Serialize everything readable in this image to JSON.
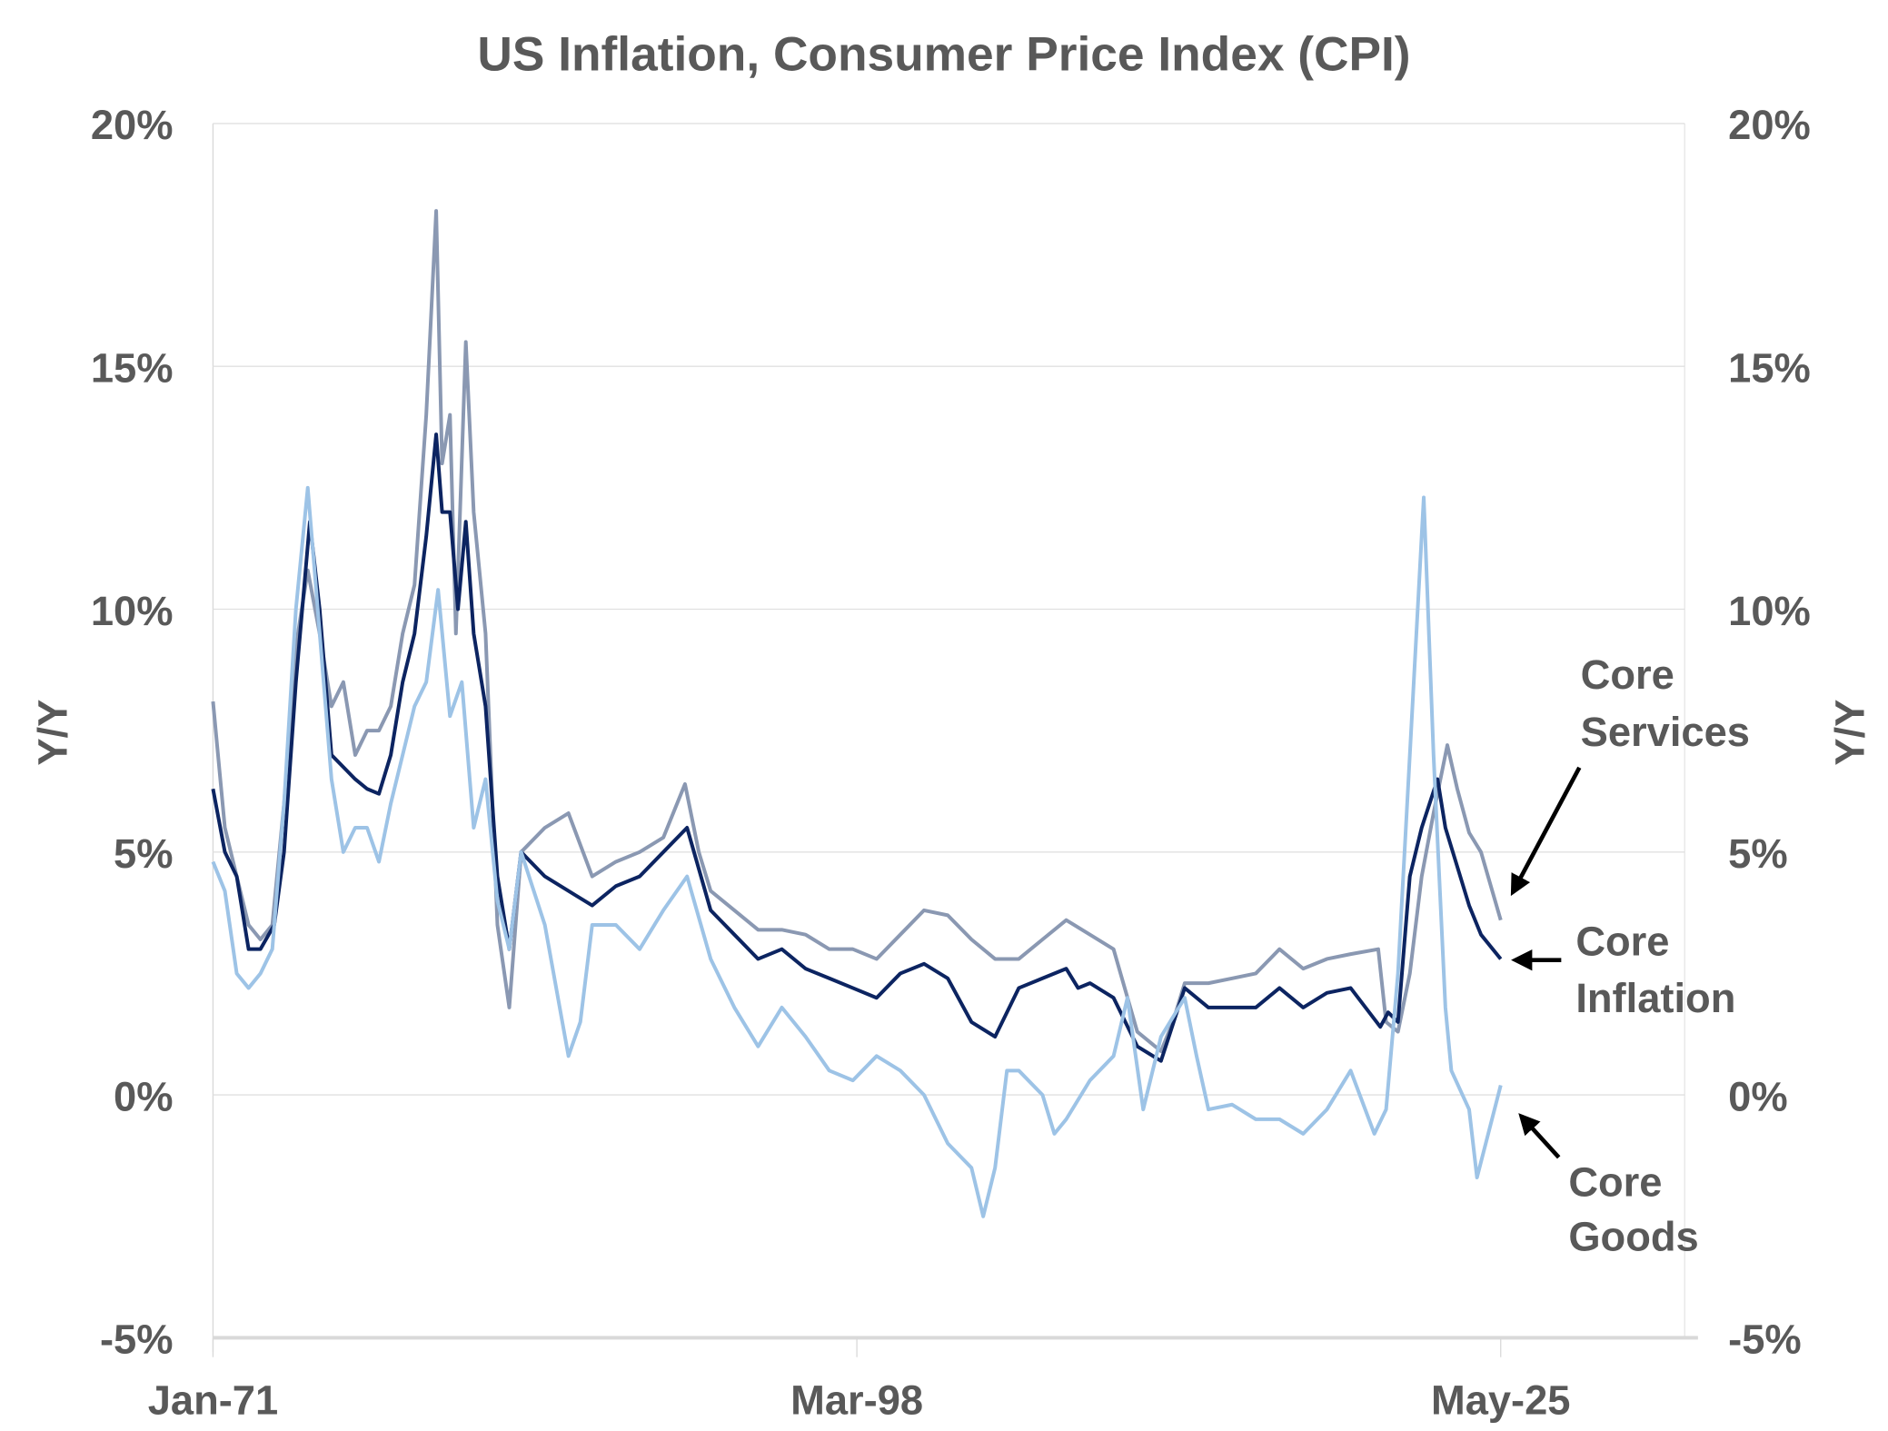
{
  "chart_data": {
    "type": "line",
    "title": "US Inflation, Consumer Price Index (CPI)",
    "ylabel_left": "Y/Y",
    "ylabel_right": "Y/Y",
    "ylim": [
      -5,
      20
    ],
    "yticks": [
      -5,
      0,
      5,
      10,
      15,
      20
    ],
    "ytick_labels": [
      "-5%",
      "0%",
      "5%",
      "10%",
      "15%",
      "20%"
    ],
    "xticks": [
      "1971-01",
      "1998-03",
      "2025-05"
    ],
    "xtick_labels": [
      "Jan-71",
      "Mar-98",
      "May-25"
    ],
    "xlim": [
      "1971-01",
      "2033-01"
    ],
    "grid": "horizontal",
    "legend": "inline annotations at right with arrows",
    "series": [
      {
        "name": "Core Services",
        "color": "#8a98b2",
        "label_lines": [
          "Core",
          "Services"
        ],
        "points": [
          [
            "1971-01",
            8.1
          ],
          [
            "1971-07",
            5.5
          ],
          [
            "1972-01",
            4.5
          ],
          [
            "1972-07",
            3.5
          ],
          [
            "1973-01",
            3.2
          ],
          [
            "1973-07",
            3.5
          ],
          [
            "1974-01",
            6
          ],
          [
            "1974-08",
            9.5
          ],
          [
            "1975-01",
            10.8
          ],
          [
            "1975-07",
            9.5
          ],
          [
            "1976-01",
            8
          ],
          [
            "1976-07",
            8.5
          ],
          [
            "1977-01",
            7
          ],
          [
            "1977-07",
            7.5
          ],
          [
            "1978-01",
            7.5
          ],
          [
            "1978-07",
            8
          ],
          [
            "1979-01",
            9.5
          ],
          [
            "1979-07",
            10.5
          ],
          [
            "1980-01",
            14
          ],
          [
            "1980-06",
            18.2
          ],
          [
            "1980-09",
            13
          ],
          [
            "1981-01",
            14
          ],
          [
            "1981-04",
            9.5
          ],
          [
            "1981-09",
            15.5
          ],
          [
            "1982-01",
            12
          ],
          [
            "1982-07",
            9.5
          ],
          [
            "1983-01",
            3.5
          ],
          [
            "1983-07",
            1.8
          ],
          [
            "1984-01",
            5
          ],
          [
            "1985-01",
            5.5
          ],
          [
            "1986-01",
            5.8
          ],
          [
            "1987-01",
            4.5
          ],
          [
            "1988-01",
            4.8
          ],
          [
            "1989-01",
            5
          ],
          [
            "1990-01",
            5.3
          ],
          [
            "1990-12",
            6.4
          ],
          [
            "1991-07",
            5
          ],
          [
            "1992-01",
            4.2
          ],
          [
            "1993-01",
            3.8
          ],
          [
            "1994-01",
            3.4
          ],
          [
            "1995-01",
            3.4
          ],
          [
            "1996-01",
            3.3
          ],
          [
            "1997-01",
            3.0
          ],
          [
            "1998-01",
            3.0
          ],
          [
            "1999-01",
            2.8
          ],
          [
            "2000-01",
            3.3
          ],
          [
            "2001-01",
            3.8
          ],
          [
            "2002-01",
            3.7
          ],
          [
            "2003-01",
            3.2
          ],
          [
            "2004-01",
            2.8
          ],
          [
            "2005-01",
            2.8
          ],
          [
            "2006-01",
            3.2
          ],
          [
            "2007-01",
            3.6
          ],
          [
            "2008-01",
            3.3
          ],
          [
            "2009-01",
            3.0
          ],
          [
            "2010-01",
            1.3
          ],
          [
            "2011-01",
            0.9
          ],
          [
            "2011-07",
            1.5
          ],
          [
            "2012-01",
            2.3
          ],
          [
            "2013-01",
            2.3
          ],
          [
            "2014-01",
            2.4
          ],
          [
            "2015-01",
            2.5
          ],
          [
            "2016-01",
            3.0
          ],
          [
            "2017-01",
            2.6
          ],
          [
            "2018-01",
            2.8
          ],
          [
            "2019-01",
            2.9
          ],
          [
            "2020-03",
            3.0
          ],
          [
            "2020-07",
            1.5
          ],
          [
            "2021-01",
            1.3
          ],
          [
            "2021-07",
            2.5
          ],
          [
            "2022-01",
            4.5
          ],
          [
            "2022-07",
            5.8
          ],
          [
            "2023-02",
            7.2
          ],
          [
            "2023-07",
            6.3
          ],
          [
            "2024-01",
            5.4
          ],
          [
            "2024-07",
            5.0
          ],
          [
            "2025-05",
            3.6
          ]
        ]
      },
      {
        "name": "Core Inflation",
        "color": "#0c2461",
        "label_lines": [
          "Core",
          "Inflation"
        ],
        "points": [
          [
            "1971-01",
            6.3
          ],
          [
            "1971-07",
            5.0
          ],
          [
            "1972-01",
            4.5
          ],
          [
            "1972-07",
            3.0
          ],
          [
            "1973-01",
            3.0
          ],
          [
            "1973-08",
            3.5
          ],
          [
            "1974-01",
            5
          ],
          [
            "1974-07",
            8.5
          ],
          [
            "1975-02",
            11.8
          ],
          [
            "1975-07",
            10
          ],
          [
            "1976-01",
            7
          ],
          [
            "1977-01",
            6.5
          ],
          [
            "1977-07",
            6.3
          ],
          [
            "1978-01",
            6.2
          ],
          [
            "1978-07",
            7
          ],
          [
            "1979-01",
            8.5
          ],
          [
            "1979-07",
            9.5
          ],
          [
            "1980-01",
            11.5
          ],
          [
            "1980-06",
            13.6
          ],
          [
            "1980-09",
            12
          ],
          [
            "1981-01",
            12
          ],
          [
            "1981-05",
            10
          ],
          [
            "1981-09",
            11.8
          ],
          [
            "1982-01",
            9.5
          ],
          [
            "1982-07",
            8
          ],
          [
            "1983-01",
            4.5
          ],
          [
            "1983-07",
            3.0
          ],
          [
            "1984-01",
            5
          ],
          [
            "1985-01",
            4.5
          ],
          [
            "1986-01",
            4.2
          ],
          [
            "1987-01",
            3.9
          ],
          [
            "1988-01",
            4.3
          ],
          [
            "1989-01",
            4.5
          ],
          [
            "1990-01",
            5
          ],
          [
            "1991-01",
            5.5
          ],
          [
            "1992-01",
            3.8
          ],
          [
            "1993-01",
            3.3
          ],
          [
            "1994-01",
            2.8
          ],
          [
            "1995-01",
            3.0
          ],
          [
            "1996-01",
            2.6
          ],
          [
            "1997-01",
            2.4
          ],
          [
            "1998-01",
            2.2
          ],
          [
            "1999-01",
            2.0
          ],
          [
            "2000-01",
            2.5
          ],
          [
            "2001-01",
            2.7
          ],
          [
            "2002-01",
            2.4
          ],
          [
            "2003-01",
            1.5
          ],
          [
            "2004-01",
            1.2
          ],
          [
            "2005-01",
            2.2
          ],
          [
            "2006-01",
            2.4
          ],
          [
            "2007-01",
            2.6
          ],
          [
            "2007-07",
            2.2
          ],
          [
            "2008-01",
            2.3
          ],
          [
            "2009-01",
            2.0
          ],
          [
            "2010-01",
            1.0
          ],
          [
            "2011-01",
            0.7
          ],
          [
            "2012-01",
            2.2
          ],
          [
            "2013-01",
            1.8
          ],
          [
            "2014-01",
            1.8
          ],
          [
            "2015-01",
            1.8
          ],
          [
            "2016-01",
            2.2
          ],
          [
            "2017-01",
            1.8
          ],
          [
            "2018-01",
            2.1
          ],
          [
            "2019-01",
            2.2
          ],
          [
            "2020-04",
            1.4
          ],
          [
            "2020-08",
            1.7
          ],
          [
            "2021-01",
            1.5
          ],
          [
            "2021-07",
            4.5
          ],
          [
            "2022-01",
            5.5
          ],
          [
            "2022-09",
            6.5
          ],
          [
            "2023-01",
            5.5
          ],
          [
            "2023-07",
            4.7
          ],
          [
            "2024-01",
            3.9
          ],
          [
            "2024-07",
            3.3
          ],
          [
            "2025-05",
            2.8
          ]
        ]
      },
      {
        "name": "Core Goods",
        "color": "#9dc3e6",
        "label_lines": [
          "Core",
          "Goods"
        ],
        "points": [
          [
            "1971-01",
            4.8
          ],
          [
            "1971-07",
            4.2
          ],
          [
            "1972-01",
            2.5
          ],
          [
            "1972-07",
            2.2
          ],
          [
            "1973-01",
            2.5
          ],
          [
            "1973-07",
            3
          ],
          [
            "1974-01",
            6
          ],
          [
            "1974-07",
            10
          ],
          [
            "1975-01",
            12.5
          ],
          [
            "1975-05",
            10.5
          ],
          [
            "1976-01",
            6.5
          ],
          [
            "1976-07",
            5
          ],
          [
            "1977-01",
            5.5
          ],
          [
            "1977-07",
            5.5
          ],
          [
            "1978-01",
            4.8
          ],
          [
            "1978-07",
            6
          ],
          [
            "1979-01",
            7
          ],
          [
            "1979-07",
            8
          ],
          [
            "1980-01",
            8.5
          ],
          [
            "1980-07",
            10.4
          ],
          [
            "1981-01",
            7.8
          ],
          [
            "1981-07",
            8.5
          ],
          [
            "1982-01",
            5.5
          ],
          [
            "1982-07",
            6.5
          ],
          [
            "1983-01",
            4
          ],
          [
            "1983-07",
            3.0
          ],
          [
            "1984-01",
            5
          ],
          [
            "1985-01",
            3.5
          ],
          [
            "1986-01",
            0.8
          ],
          [
            "1986-07",
            1.5
          ],
          [
            "1987-01",
            3.5
          ],
          [
            "1988-01",
            3.5
          ],
          [
            "1989-01",
            3.0
          ],
          [
            "1990-01",
            3.8
          ],
          [
            "1991-01",
            4.5
          ],
          [
            "1992-01",
            2.8
          ],
          [
            "1993-01",
            1.8
          ],
          [
            "1994-01",
            1.0
          ],
          [
            "1995-01",
            1.8
          ],
          [
            "1996-01",
            1.2
          ],
          [
            "1997-01",
            0.5
          ],
          [
            "1998-01",
            0.3
          ],
          [
            "1999-01",
            0.8
          ],
          [
            "2000-01",
            0.5
          ],
          [
            "2001-01",
            0.0
          ],
          [
            "2002-01",
            -1.0
          ],
          [
            "2003-01",
            -1.5
          ],
          [
            "2003-07",
            -2.5
          ],
          [
            "2004-01",
            -1.5
          ],
          [
            "2004-07",
            0.5
          ],
          [
            "2005-01",
            0.5
          ],
          [
            "2006-01",
            0
          ],
          [
            "2006-07",
            -0.8
          ],
          [
            "2007-01",
            -0.5
          ],
          [
            "2008-01",
            0.3
          ],
          [
            "2009-01",
            0.8
          ],
          [
            "2009-08",
            2.0
          ],
          [
            "2010-04",
            -0.3
          ],
          [
            "2011-01",
            1.2
          ],
          [
            "2012-01",
            2.0
          ],
          [
            "2012-07",
            0.8
          ],
          [
            "2013-01",
            -0.3
          ],
          [
            "2014-01",
            -0.2
          ],
          [
            "2015-01",
            -0.5
          ],
          [
            "2016-01",
            -0.5
          ],
          [
            "2017-01",
            -0.8
          ],
          [
            "2018-01",
            -0.3
          ],
          [
            "2019-01",
            0.5
          ],
          [
            "2020-01",
            -0.8
          ],
          [
            "2020-07",
            -0.3
          ],
          [
            "2021-01",
            2.5
          ],
          [
            "2021-07",
            7.0
          ],
          [
            "2022-02",
            12.3
          ],
          [
            "2022-07",
            7.0
          ],
          [
            "2023-01",
            1.8
          ],
          [
            "2023-04",
            0.5
          ],
          [
            "2024-01",
            -0.3
          ],
          [
            "2024-05",
            -1.7
          ],
          [
            "2025-05",
            0.2
          ]
        ]
      }
    ]
  }
}
